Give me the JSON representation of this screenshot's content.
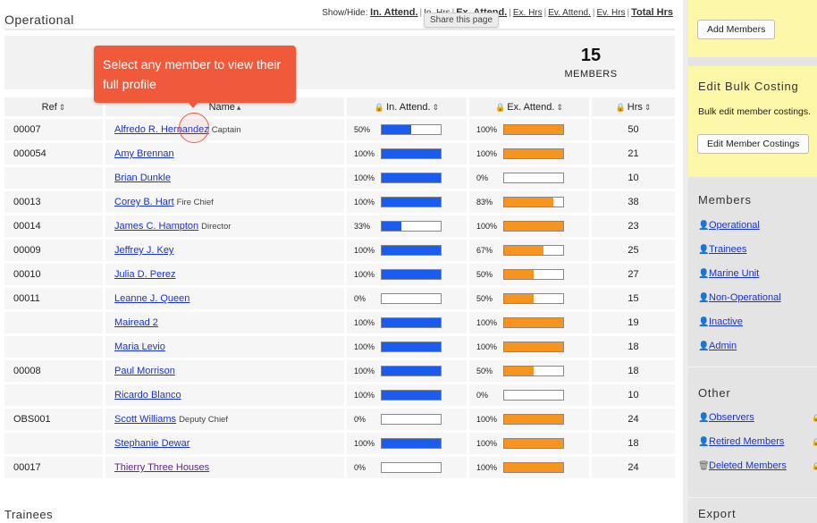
{
  "section": {
    "title": "Operational"
  },
  "showhide": {
    "label": "Show/Hide:",
    "in_attend": "In. Attend.",
    "in_hrs": "In. Hrs",
    "ex_attend": "Ex. Attend.",
    "ex_hrs": "Ex. Hrs",
    "ev_attend": "Ev. Attend.",
    "ev_hrs": "Ev. Hrs",
    "total_hrs": "Total Hrs"
  },
  "share_tooltip": "Share this page",
  "summary": {
    "count": "15",
    "label": "MEMBERS"
  },
  "callout": {
    "text": "Select any member to view their full profile"
  },
  "table": {
    "headers": {
      "ref": "Ref",
      "name": "Name",
      "in_attend": "In. Attend.",
      "ex_attend": "Ex. Attend.",
      "hrs": "Hrs"
    },
    "rows": [
      {
        "ref": "00007",
        "name": "Alfredo R. Hernandez",
        "role": "Captain",
        "in_pct": "50%",
        "in_val": 0.5,
        "ex_pct": "100%",
        "ex_val": 1.0,
        "hrs": "50"
      },
      {
        "ref": "000054",
        "name": "Amy Brennan",
        "role": "",
        "in_pct": "100%",
        "in_val": 1.0,
        "ex_pct": "100%",
        "ex_val": 1.0,
        "hrs": "21"
      },
      {
        "ref": "",
        "name": "Brian Dunkle",
        "role": "",
        "in_pct": "100%",
        "in_val": 1.0,
        "ex_pct": "0%",
        "ex_val": 0.0,
        "hrs": "10"
      },
      {
        "ref": "00013",
        "name": "Corey B. Hart",
        "role": "Fire Chief",
        "in_pct": "100%",
        "in_val": 1.0,
        "ex_pct": "83%",
        "ex_val": 0.83,
        "hrs": "38"
      },
      {
        "ref": "00014",
        "name": "James C. Hampton",
        "role": "Director",
        "in_pct": "33%",
        "in_val": 0.33,
        "ex_pct": "100%",
        "ex_val": 1.0,
        "hrs": "23"
      },
      {
        "ref": "00009",
        "name": "Jeffrey J. Key",
        "role": "",
        "in_pct": "100%",
        "in_val": 1.0,
        "ex_pct": "67%",
        "ex_val": 0.67,
        "hrs": "25"
      },
      {
        "ref": "00010",
        "name": "Julia D. Perez",
        "role": "",
        "in_pct": "100%",
        "in_val": 1.0,
        "ex_pct": "50%",
        "ex_val": 0.5,
        "hrs": "27"
      },
      {
        "ref": "00011",
        "name": "Leanne J. Queen",
        "role": "",
        "in_pct": "0%",
        "in_val": 0.0,
        "ex_pct": "50%",
        "ex_val": 0.5,
        "hrs": "15"
      },
      {
        "ref": "",
        "name": "Mairead 2",
        "role": "",
        "in_pct": "100%",
        "in_val": 1.0,
        "ex_pct": "100%",
        "ex_val": 1.0,
        "hrs": "19"
      },
      {
        "ref": "",
        "name": "Maria Levio",
        "role": "",
        "in_pct": "100%",
        "in_val": 1.0,
        "ex_pct": "100%",
        "ex_val": 1.0,
        "hrs": "18"
      },
      {
        "ref": "00008",
        "name": "Paul Morrison",
        "role": "",
        "in_pct": "100%",
        "in_val": 1.0,
        "ex_pct": "50%",
        "ex_val": 0.5,
        "hrs": "18"
      },
      {
        "ref": "",
        "name": "Ricardo Blanco",
        "role": "",
        "in_pct": "100%",
        "in_val": 1.0,
        "ex_pct": "0%",
        "ex_val": 0.0,
        "hrs": "10"
      },
      {
        "ref": "OBS001",
        "name": "Scott Williams",
        "role": "Deputy Chief",
        "in_pct": "0%",
        "in_val": 0.0,
        "ex_pct": "100%",
        "ex_val": 1.0,
        "hrs": "24"
      },
      {
        "ref": "",
        "name": "Stephanie Dewar",
        "role": "",
        "in_pct": "100%",
        "in_val": 1.0,
        "ex_pct": "100%",
        "ex_val": 1.0,
        "hrs": "18"
      },
      {
        "ref": "00017",
        "name": "Thierry Three Houses",
        "role": "",
        "in_pct": "0%",
        "in_val": 0.0,
        "ex_pct": "100%",
        "ex_val": 1.0,
        "hrs": "24"
      }
    ]
  },
  "next_section": "Trainees",
  "sidebar": {
    "add_members": "Add Members",
    "bulk": {
      "title": "Edit Bulk Costing",
      "text": "Bulk edit member costings.",
      "button": "Edit Member Costings"
    },
    "members": {
      "title": "Members",
      "items": [
        "Operational",
        "Trainees",
        "Marine Unit",
        "Non-Operational",
        "Inactive",
        "Admin"
      ]
    },
    "other": {
      "title": "Other",
      "items": [
        "Observers",
        "Retired Members",
        "Deleted Members"
      ]
    },
    "export": "Export"
  },
  "colors": {
    "in_bar": "#1a5cf0",
    "ex_bar": "#f7941d",
    "callout": "#f05a3a",
    "link": "#1a33cc",
    "sidebar_note": "#fdf7a8"
  }
}
